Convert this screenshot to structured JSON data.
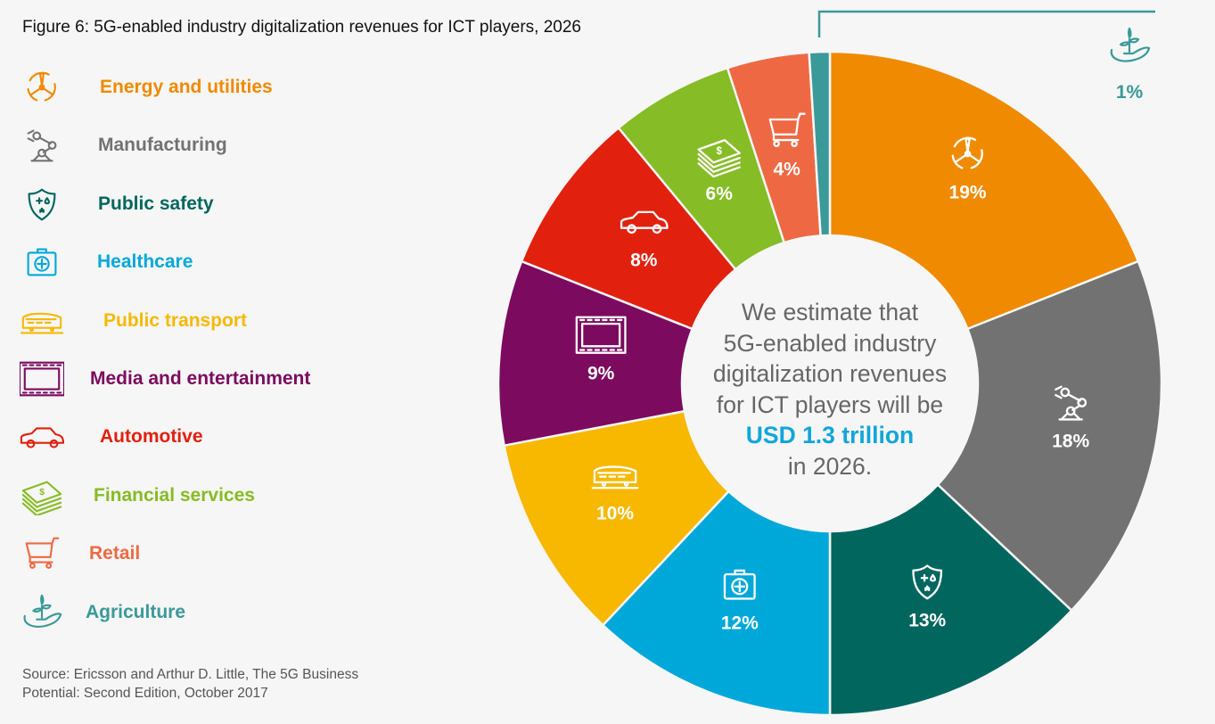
{
  "title": "Figure 6: 5G-enabled industry digitalization revenues for ICT players, 2026",
  "center": {
    "lines": [
      "We estimate that",
      "5G-enabled industry",
      "digitalization revenues",
      "for ICT players will be"
    ],
    "highlight": "USD 1.3 trillion",
    "tail": "in 2026."
  },
  "source": "Source: Ericsson and Arthur D. Little, The 5G Business Potential: Second Edition, October 2017",
  "chart_data": {
    "type": "pie",
    "variant": "donut",
    "title": "Figure 6: 5G-enabled industry digitalization revenues for ICT players, 2026",
    "legend_position": "left",
    "unit": "%",
    "slices": [
      {
        "label": "Energy and utilities",
        "value": 19,
        "data_label": "19%",
        "color": "#F08A00",
        "icon": "wind-turbine-icon"
      },
      {
        "label": "Manufacturing",
        "value": 18,
        "data_label": "18%",
        "color": "#727272",
        "icon": "robot-arm-icon"
      },
      {
        "label": "Public safety",
        "value": 13,
        "data_label": "13%",
        "color": "#00665E",
        "icon": "shield-icon"
      },
      {
        "label": "Healthcare",
        "value": 12,
        "data_label": "12%",
        "color": "#00A8DA",
        "icon": "medical-kit-icon"
      },
      {
        "label": "Public transport",
        "value": 10,
        "data_label": "10%",
        "color": "#F8B800",
        "icon": "train-icon"
      },
      {
        "label": "Media and entertainment",
        "value": 9,
        "data_label": "9%",
        "color": "#7C0A5F",
        "icon": "film-icon"
      },
      {
        "label": "Automotive",
        "value": 8,
        "data_label": "8%",
        "color": "#E2200E",
        "icon": "car-icon"
      },
      {
        "label": "Financial services",
        "value": 6,
        "data_label": "6%",
        "color": "#86BC25",
        "icon": "money-icon"
      },
      {
        "label": "Retail",
        "value": 4,
        "data_label": "4%",
        "color": "#EE6943",
        "icon": "cart-icon"
      },
      {
        "label": "Agriculture",
        "value": 1,
        "data_label": "1%",
        "color": "#3A9999",
        "icon": "plant-in-hand-icon"
      }
    ]
  }
}
